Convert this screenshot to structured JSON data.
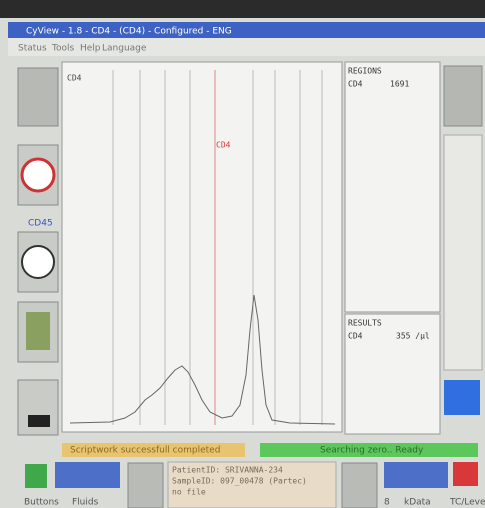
{
  "window": {
    "title": "CyView - 1.8 - CD4 - (CD4) - Configured - ENG"
  },
  "menu": [
    "Status",
    "Tools",
    "Help",
    "Language"
  ],
  "left_panel": {
    "label": "CD45"
  },
  "plot": {
    "label": "CD4",
    "region_label": "CD4"
  },
  "regions": {
    "header": "REGIONS",
    "rows": [
      [
        "CD4",
        "1691"
      ]
    ]
  },
  "results": {
    "header": "RESULTS",
    "rows": [
      [
        "CD4",
        "355 /µl"
      ]
    ]
  },
  "status": {
    "left": "Scriptwork successfull completed",
    "right": "Searching zero.. Ready"
  },
  "bottom": {
    "buttons": [
      "Buttons",
      "Fluids"
    ],
    "info": [
      "PatientID: SRIVANNA-234",
      "SampleID: 097_00478 (Partec)",
      "no file"
    ],
    "right": [
      "8",
      "kData",
      "TC/Level"
    ]
  }
}
